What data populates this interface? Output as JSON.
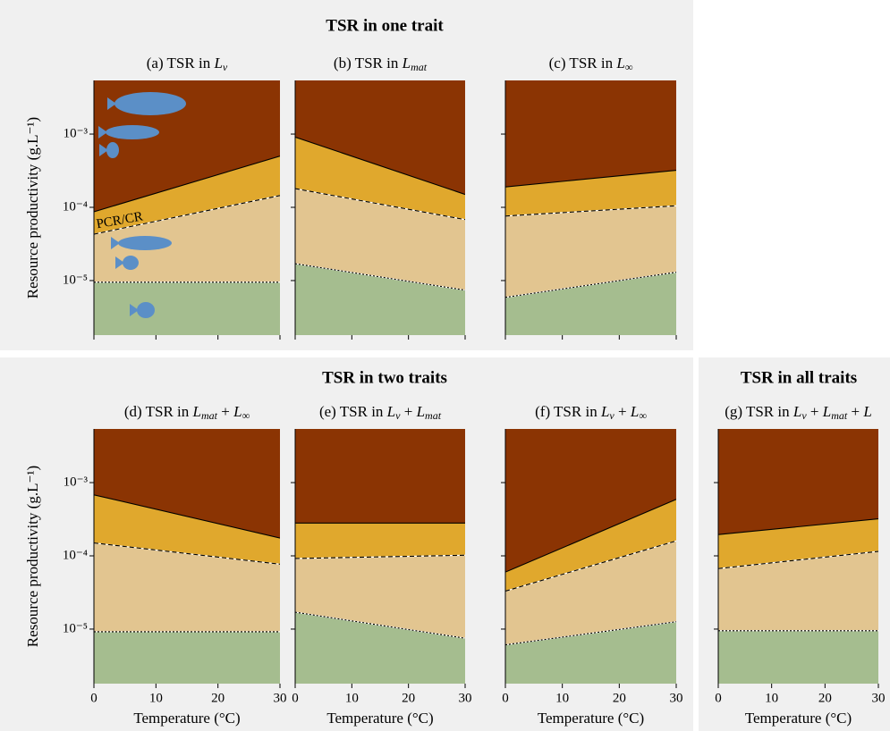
{
  "section_titles": [
    "TSR in one trait",
    "TSR in two traits",
    "TSR in all traits"
  ],
  "chart_data": [
    {
      "type": "area",
      "title": [
        {
          "text": "(a) TSR in "
        },
        {
          "text": "L",
          "italic": true
        },
        {
          "text": "v",
          "italic": true,
          "sub": true
        }
      ],
      "ylabel": "Resource productivity (g.L⁻¹)",
      "annotation": "PCR/CR",
      "x": [
        0,
        30
      ],
      "xlim": [
        0,
        30
      ],
      "xticks": [
        0,
        10,
        20,
        30
      ],
      "xtick_labels": false,
      "ylim": [
        1.8e-06,
        0.0054
      ],
      "log_y": true,
      "ytick_labels": true,
      "yticks": [
        {
          "value": 1e-05,
          "label": "10⁻⁵"
        },
        {
          "value": 0.0001,
          "label": "10⁻⁴"
        },
        {
          "value": 0.001,
          "label": "10⁻³"
        }
      ],
      "band_colors": [
        "#a5bd8f",
        "#e2c590",
        "#e0a82d",
        "#8b3403"
      ],
      "lines": [
        {
          "style": "dotted",
          "values": [
            9.5e-06,
            9.5e-06
          ]
        },
        {
          "style": "dashed",
          "values": [
            4.3e-05,
            0.000145
          ]
        },
        {
          "style": "solid",
          "values": [
            8.7e-05,
            0.0005
          ]
        }
      ]
    },
    {
      "type": "area",
      "title": [
        {
          "text": "(b) TSR in "
        },
        {
          "text": "L",
          "italic": true
        },
        {
          "text": "mat",
          "italic": true,
          "sub": true
        }
      ],
      "x": [
        0,
        30
      ],
      "xlim": [
        0,
        30
      ],
      "xticks": [
        0,
        10,
        20,
        30
      ],
      "xtick_labels": false,
      "ylim": [
        1.8e-06,
        0.0054
      ],
      "log_y": true,
      "ytick_labels": false,
      "yticks": [
        1e-05,
        0.0001,
        0.001
      ],
      "band_colors": [
        "#a5bd8f",
        "#e2c590",
        "#e0a82d",
        "#8b3403"
      ],
      "lines": [
        {
          "style": "dotted",
          "values": [
            1.7e-05,
            7.4e-06
          ]
        },
        {
          "style": "dashed",
          "values": [
            0.00018,
            6.8e-05
          ]
        },
        {
          "style": "solid",
          "values": [
            0.00091,
            0.00015
          ]
        }
      ]
    },
    {
      "type": "area",
      "title": [
        {
          "text": "(c) TSR in "
        },
        {
          "text": "L",
          "italic": true
        },
        {
          "text": "∞",
          "italic": true,
          "sub": true
        }
      ],
      "x": [
        0,
        30
      ],
      "xlim": [
        0,
        30
      ],
      "xticks": [
        0,
        10,
        20,
        30
      ],
      "xtick_labels": false,
      "ylim": [
        1.8e-06,
        0.0054
      ],
      "log_y": true,
      "ytick_labels": false,
      "yticks": [
        1e-05,
        0.0001,
        0.001
      ],
      "band_colors": [
        "#a5bd8f",
        "#e2c590",
        "#e0a82d",
        "#8b3403"
      ],
      "lines": [
        {
          "style": "dotted",
          "values": [
            5.9e-06,
            1.3e-05
          ]
        },
        {
          "style": "dashed",
          "values": [
            7.6e-05,
            0.000105
          ]
        },
        {
          "style": "solid",
          "values": [
            0.00019,
            0.00032
          ]
        }
      ]
    },
    {
      "type": "area",
      "title": [
        {
          "text": "(d) TSR in "
        },
        {
          "text": "L",
          "italic": true
        },
        {
          "text": "mat",
          "italic": true,
          "sub": true
        },
        {
          "text": " + "
        },
        {
          "text": "L",
          "italic": true
        },
        {
          "text": "∞",
          "italic": true,
          "sub": true
        }
      ],
      "ylabel": "Resource productivity (g.L⁻¹)",
      "xlabel": "Temperature (°C)",
      "x": [
        0,
        30
      ],
      "xlim": [
        0,
        30
      ],
      "xticks": [
        0,
        10,
        20,
        30
      ],
      "xtick_labels": true,
      "ylim": [
        1.8e-06,
        0.0054
      ],
      "log_y": true,
      "ytick_labels": true,
      "yticks": [
        {
          "value": 1e-05,
          "label": "10⁻⁵"
        },
        {
          "value": 0.0001,
          "label": "10⁻⁴"
        },
        {
          "value": 0.001,
          "label": "10⁻³"
        }
      ],
      "band_colors": [
        "#a5bd8f",
        "#e2c590",
        "#e0a82d",
        "#8b3403"
      ],
      "lines": [
        {
          "style": "dotted",
          "values": [
            9.2e-06,
            9.2e-06
          ]
        },
        {
          "style": "dashed",
          "values": [
            0.00015,
            7.7e-05
          ]
        },
        {
          "style": "solid",
          "values": [
            0.00068,
            0.000175
          ]
        }
      ]
    },
    {
      "type": "area",
      "title": [
        {
          "text": "(e) TSR in "
        },
        {
          "text": "L",
          "italic": true
        },
        {
          "text": "v",
          "italic": true,
          "sub": true
        },
        {
          "text": " + "
        },
        {
          "text": "L",
          "italic": true
        },
        {
          "text": "mat",
          "italic": true,
          "sub": true
        }
      ],
      "xlabel": "Temperature (°C)",
      "x": [
        0,
        30
      ],
      "xlim": [
        0,
        30
      ],
      "xticks": [
        0,
        10,
        20,
        30
      ],
      "xtick_labels": true,
      "ylim": [
        1.8e-06,
        0.0054
      ],
      "log_y": true,
      "ytick_labels": false,
      "yticks": [
        1e-05,
        0.0001,
        0.001
      ],
      "band_colors": [
        "#a5bd8f",
        "#e2c590",
        "#e0a82d",
        "#8b3403"
      ],
      "lines": [
        {
          "style": "dotted",
          "values": [
            1.7e-05,
            7.5e-06
          ]
        },
        {
          "style": "dashed",
          "values": [
            9.2e-05,
            0.000102
          ]
        },
        {
          "style": "solid",
          "values": [
            0.00028,
            0.00028
          ]
        }
      ]
    },
    {
      "type": "area",
      "title": [
        {
          "text": "(f) TSR in "
        },
        {
          "text": "L",
          "italic": true
        },
        {
          "text": "v",
          "italic": true,
          "sub": true
        },
        {
          "text": " + "
        },
        {
          "text": "L",
          "italic": true
        },
        {
          "text": "∞",
          "italic": true,
          "sub": true
        }
      ],
      "xlabel": "Temperature (°C)",
      "x": [
        0,
        30
      ],
      "xlim": [
        0,
        30
      ],
      "xticks": [
        0,
        10,
        20,
        30
      ],
      "xtick_labels": true,
      "ylim": [
        1.8e-06,
        0.0054
      ],
      "log_y": true,
      "ytick_labels": false,
      "yticks": [
        1e-05,
        0.0001,
        0.001
      ],
      "band_colors": [
        "#a5bd8f",
        "#e2c590",
        "#e0a82d",
        "#8b3403"
      ],
      "lines": [
        {
          "style": "dotted",
          "values": [
            6.1e-06,
            1.26e-05
          ]
        },
        {
          "style": "dashed",
          "values": [
            3.3e-05,
            0.00016
          ]
        },
        {
          "style": "solid",
          "values": [
            6e-05,
            0.00059
          ]
        }
      ]
    },
    {
      "type": "area",
      "title": [
        {
          "text": "(g) TSR in "
        },
        {
          "text": "L",
          "italic": true
        },
        {
          "text": "v",
          "italic": true,
          "sub": true
        },
        {
          "text": " + "
        },
        {
          "text": "L",
          "italic": true
        },
        {
          "text": "mat",
          "italic": true,
          "sub": true
        },
        {
          "text": " + "
        },
        {
          "text": "L",
          "italic": true
        }
      ],
      "xlabel": "Temperature (°C)",
      "x": [
        0,
        30
      ],
      "xlim": [
        0,
        30
      ],
      "xticks": [
        0,
        10,
        20,
        30
      ],
      "xtick_labels": true,
      "ylim": [
        1.8e-06,
        0.0054
      ],
      "log_y": true,
      "ytick_labels": false,
      "yticks": [
        1e-05,
        0.0001,
        0.001
      ],
      "band_colors": [
        "#a5bd8f",
        "#e2c590",
        "#e0a82d",
        "#8b3403"
      ],
      "lines": [
        {
          "style": "dotted",
          "values": [
            9.5e-06,
            9.5e-06
          ]
        },
        {
          "style": "dashed",
          "values": [
            6.7e-05,
            0.000115
          ]
        },
        {
          "style": "solid",
          "values": [
            0.000195,
            0.00032
          ]
        }
      ]
    }
  ]
}
